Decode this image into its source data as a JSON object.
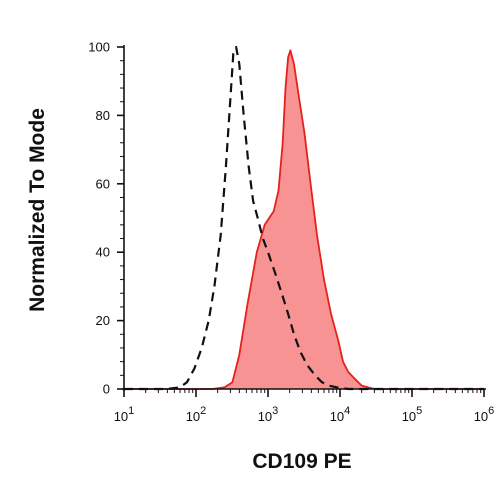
{
  "chart_data": {
    "type": "area",
    "xlabel": "CD109 PE",
    "ylabel": "Normalized To Mode",
    "x_scale": "log",
    "xlim": [
      10,
      1000000
    ],
    "ylim": [
      0,
      100
    ],
    "grid": false,
    "legend": "none",
    "y_ticks": [
      0,
      20,
      40,
      60,
      80,
      100
    ],
    "x_ticks": [
      {
        "value": 10,
        "base": "10",
        "exp": "1"
      },
      {
        "value": 100,
        "base": "10",
        "exp": "2"
      },
      {
        "value": 1000,
        "base": "10",
        "exp": "3"
      },
      {
        "value": 10000,
        "base": "10",
        "exp": "4"
      },
      {
        "value": 100000,
        "base": "10",
        "exp": "5"
      },
      {
        "value": 1000000,
        "base": "10",
        "exp": "6"
      }
    ],
    "series": [
      {
        "style": "filled",
        "color": "#e8201c",
        "fill": "#f79393",
        "x": [
          5,
          60,
          170,
          250,
          320,
          400,
          520,
          700,
          900,
          1200,
          1400,
          1600,
          1750,
          1900,
          2050,
          2300,
          2700,
          3200,
          3900,
          4800,
          6000,
          7500,
          9500,
          11000,
          13000,
          16000,
          20000,
          30000,
          100000,
          1000000
        ],
        "y": [
          0,
          0,
          0,
          0.5,
          2,
          10,
          25,
          40,
          48,
          52,
          58,
          72,
          88,
          97,
          99,
          95,
          85,
          75,
          60,
          45,
          32,
          22,
          14,
          8,
          5,
          3,
          1,
          0,
          0,
          0
        ]
      },
      {
        "style": "dashed",
        "color": "#111111",
        "x": [
          5,
          40,
          60,
          75,
          95,
          120,
          150,
          180,
          220,
          260,
          300,
          330,
          360,
          400,
          460,
          540,
          620,
          720,
          850,
          1000,
          1250,
          1550,
          1900,
          2300,
          2800,
          3500,
          4500,
          5600,
          7000,
          9000,
          13000,
          1000000
        ],
        "y": [
          0,
          0,
          0.5,
          2,
          6,
          12,
          20,
          30,
          45,
          65,
          85,
          98,
          100,
          95,
          80,
          65,
          55,
          50,
          44,
          40,
          34,
          28,
          22,
          16,
          11,
          7,
          4,
          2,
          1,
          0.5,
          0,
          0
        ]
      }
    ]
  }
}
